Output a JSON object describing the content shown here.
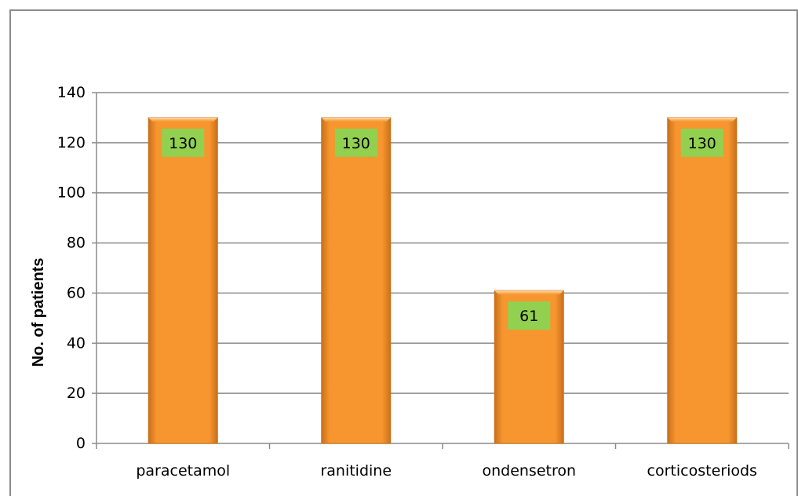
{
  "chart_data": {
    "type": "bar",
    "categories": [
      "paracetamol",
      "ranitidine",
      "ondensetron",
      "corticosteriods"
    ],
    "values": [
      130,
      130,
      61,
      130
    ],
    "data_labels": [
      "130",
      "130",
      "61",
      "130"
    ],
    "title": "",
    "xlabel": "",
    "ylabel": "No. of patients",
    "ylim": [
      0,
      140
    ],
    "yticks": [
      0,
      20,
      40,
      60,
      80,
      100,
      120,
      140
    ],
    "grid": true,
    "legend": "none",
    "colors": {
      "bar_light": "#fdb96a",
      "bar_main": "#f7962f",
      "bar_dark": "#c9701b",
      "data_label_bg": "#92d050",
      "gridline": "#8c8c8c"
    }
  }
}
